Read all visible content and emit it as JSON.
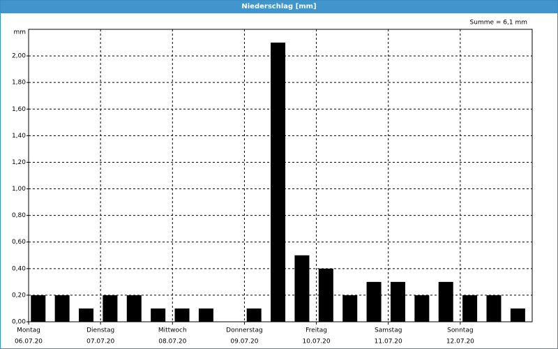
{
  "chart_data": {
    "type": "bar",
    "title": "Niederschlag [mm]",
    "y_unit": "mm",
    "annotation": "Summe = 6,1 mm",
    "values": [
      0.2,
      0.2,
      0.1,
      0.2,
      0.2,
      0.1,
      0.1,
      0.1,
      0,
      0.1,
      2.1,
      0.5,
      0.4,
      0.2,
      0.3,
      0.3,
      0.2,
      0.3,
      0.2,
      0.2,
      0.1
    ],
    "color": "#000000",
    "day_labels": [
      "Montag",
      "Dienstag",
      "Mittwoch",
      "Donnerstag",
      "Freitag",
      "Samstag",
      "Sonntag"
    ],
    "day_dates": [
      "06.07.20",
      "07.07.20",
      "08.07.20",
      "09.07.20",
      "10.07.20",
      "11.07.20",
      "12.07.20"
    ],
    "ylim": [
      0,
      2.2
    ],
    "yticks": [
      {
        "value": 0,
        "label": "0,00"
      },
      {
        "value": 0.2,
        "label": "0,20"
      },
      {
        "value": 0.4,
        "label": "0,40"
      },
      {
        "value": 0.6,
        "label": "0,60"
      },
      {
        "value": 0.8,
        "label": "0,80"
      },
      {
        "value": 1,
        "label": "1,00"
      },
      {
        "value": 1.2,
        "label": "1,20"
      },
      {
        "value": 1.4,
        "label": "1,40"
      },
      {
        "value": 1.6,
        "label": "1,60"
      },
      {
        "value": 1.8,
        "label": "1,80"
      },
      {
        "value": 2,
        "label": "2,00"
      }
    ],
    "grid": true
  }
}
